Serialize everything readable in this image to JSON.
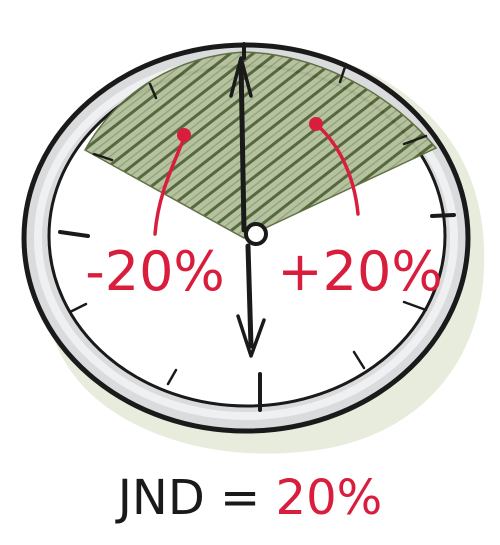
{
  "diagram": {
    "left_label": "-20%",
    "right_label": "+20%",
    "caption": {
      "prefix": "JND = ",
      "value": "20%"
    },
    "colors": {
      "ink": "#1a1a1a",
      "accent": "#d81e3c",
      "hatch_fill": "#9aa982",
      "hatch_line": "#4f5f34",
      "rim": "#d8dadb",
      "shadow": "#dfe6d6"
    }
  }
}
